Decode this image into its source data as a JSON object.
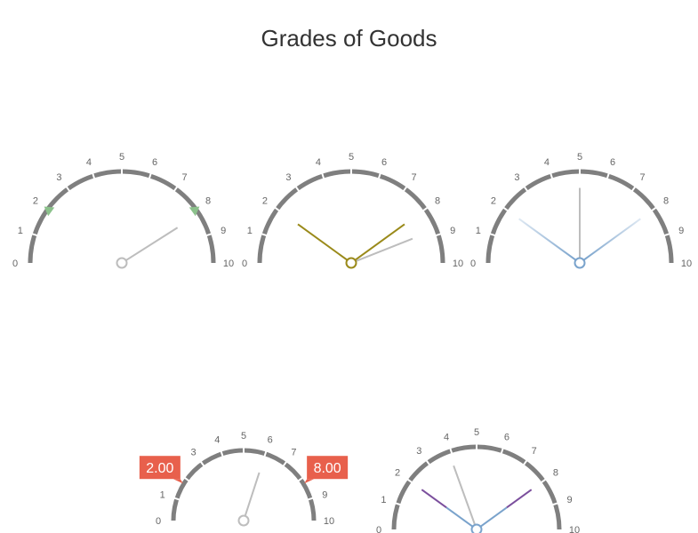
{
  "title": "Grades of Goods",
  "chart_data": [
    {
      "type": "gauge",
      "name": "gauge-1",
      "min": 0,
      "max": 10,
      "ticks": [
        "0",
        "1",
        "2",
        "3",
        "4",
        "5",
        "6",
        "7",
        "8",
        "9",
        "10"
      ],
      "pointers": [
        {
          "value": 8.2,
          "color": "#bdbdbd"
        }
      ],
      "markers": [
        {
          "value": 2,
          "color": "#8bc18b"
        },
        {
          "value": 8,
          "color": "#8bc18b"
        }
      ],
      "labels": []
    },
    {
      "type": "gauge",
      "name": "gauge-2",
      "min": 0,
      "max": 10,
      "ticks": [
        "0",
        "1",
        "2",
        "3",
        "4",
        "5",
        "6",
        "7",
        "8",
        "9",
        "10"
      ],
      "pointers": [
        {
          "value": 2.0,
          "color": "#9a8a1a"
        },
        {
          "value": 8.0,
          "color": "#9a8a1a"
        },
        {
          "value": 8.8,
          "color": "#bdbdbd"
        }
      ],
      "markers": [],
      "labels": []
    },
    {
      "type": "gauge",
      "name": "gauge-3",
      "min": 0,
      "max": 10,
      "ticks": [
        "0",
        "1",
        "2",
        "3",
        "4",
        "5",
        "6",
        "7",
        "8",
        "9",
        "10"
      ],
      "pointers": [
        {
          "value": 2.0,
          "color": "#7aa3cc",
          "fade": true
        },
        {
          "value": 8.0,
          "color": "#7aa3cc",
          "fade": true
        },
        {
          "value": 5.0,
          "color": "#bdbdbd"
        }
      ],
      "markers": [],
      "labels": []
    },
    {
      "type": "gauge",
      "name": "gauge-4",
      "min": 0,
      "max": 10,
      "ticks": [
        "0",
        "1",
        "2",
        "3",
        "4",
        "5",
        "6",
        "7",
        "8",
        "9",
        "10"
      ],
      "pointers": [
        {
          "value": 6.0,
          "color": "#bdbdbd"
        }
      ],
      "markers": [],
      "labels": [
        {
          "value": 2,
          "text": "2.00",
          "color": "#e8604c"
        },
        {
          "value": 8,
          "text": "8.00",
          "color": "#e8604c"
        }
      ]
    },
    {
      "type": "gauge",
      "name": "gauge-5",
      "min": 0,
      "max": 10,
      "ticks": [
        "0",
        "1",
        "2",
        "3",
        "4",
        "5",
        "6",
        "7",
        "8",
        "9",
        "10"
      ],
      "pointers": [
        {
          "value": 2.0,
          "color": "#7aa3cc",
          "tipColor": "#7b4f9d"
        },
        {
          "value": 8.0,
          "color": "#7aa3cc",
          "tipColor": "#7b4f9d"
        },
        {
          "value": 3.9,
          "color": "#bdbdbd"
        }
      ],
      "markers": [],
      "labels": []
    }
  ]
}
